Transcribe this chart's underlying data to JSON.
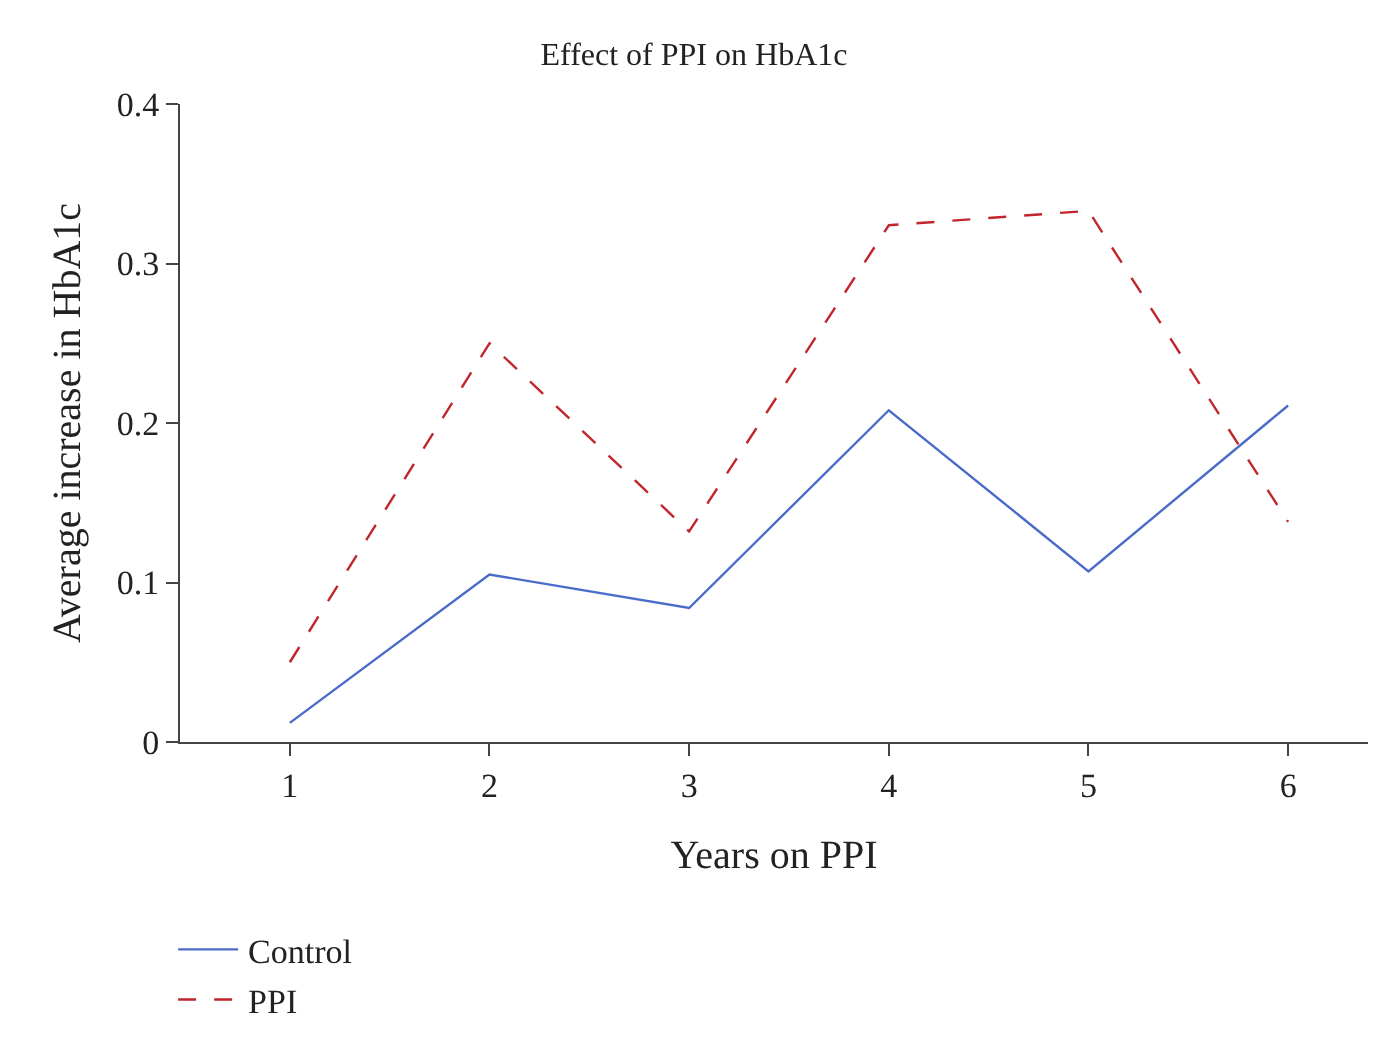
{
  "chart_data": {
    "type": "line",
    "title": "Effect of PPI on HbA1c",
    "xlabel": "Years on PPI",
    "ylabel": "Average increase in HbA1c",
    "x": [
      1,
      2,
      3,
      4,
      5,
      6
    ],
    "series": [
      {
        "name": "Control",
        "color": "#4a6cc8",
        "line_style": "solid",
        "values": [
          0.012,
          0.105,
          0.084,
          0.208,
          0.107,
          0.211
        ]
      },
      {
        "name": "PPI",
        "color": "#c0262c",
        "line_style": "dashed",
        "values": [
          0.05,
          0.25,
          0.132,
          0.324,
          0.333,
          0.138
        ]
      }
    ],
    "xlim": [
      0.45,
      6.4
    ],
    "xticks": [
      1,
      2,
      3,
      4,
      5,
      6
    ],
    "ylim": [
      0,
      0.4
    ],
    "yticks": [
      0,
      0.1,
      0.2,
      0.3,
      0.4
    ],
    "legend": "bottom left",
    "marker": "none"
  }
}
